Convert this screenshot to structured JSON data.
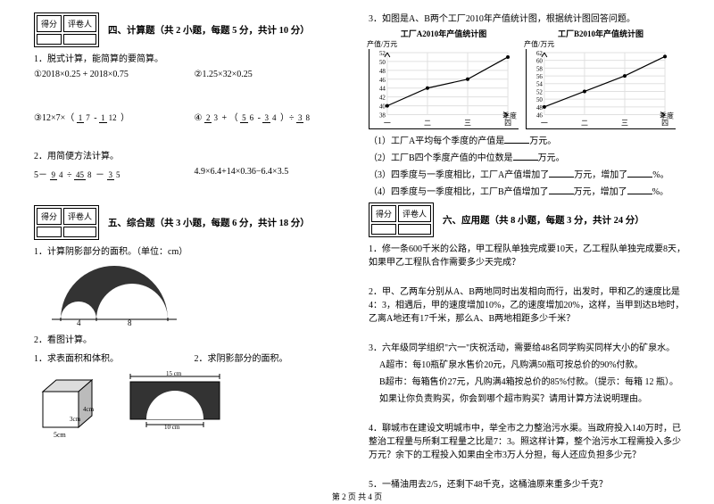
{
  "scorebox": {
    "c1": "得分",
    "c2": "评卷人"
  },
  "left": {
    "sec4_title": "四、计算题（共 2 小题，每题 5 分，共计 10 分）",
    "q1": "1．脱式计算，能简算的要简算。",
    "q1a": "①2018×0.25 + 2018×0.75",
    "q1b": "②1.25×32×0.25",
    "q1c_pre": "③12×7×（",
    "q1c_f1n": "1",
    "q1c_f1d": "7",
    "q1c_mid": " - ",
    "q1c_f2n": "1",
    "q1c_f2d": "12",
    "q1c_post": "）",
    "q1d_pre": "④",
    "q1d_f1n": "2",
    "q1d_f1d": "3",
    "q1d_p2": " + （",
    "q1d_f2n": "5",
    "q1d_f2d": "6",
    "q1d_p3": " - ",
    "q1d_f3n": "3",
    "q1d_f3d": "4",
    "q1d_p4": "）÷",
    "q1d_f4n": "3",
    "q1d_f4d": "8",
    "q2": "2．用简便方法计算。",
    "q2a_pre": "5－",
    "q2a_f1n": "9",
    "q2a_f1d": "4",
    "q2a_p2": "÷",
    "q2a_f2n": "45",
    "q2a_f2d": "8",
    "q2a_p3": "－",
    "q2a_f3n": "3",
    "q2a_f3d": "5",
    "q2b": "4.9×6.4+14×0.36−6.4×3.5",
    "sec5_title": "五、综合题（共 3 小题，每题 6 分，共计 18 分）",
    "q5_1": "1．计算阴影部分的面积。（单位：cm）",
    "dim4": "4",
    "dim8": "8",
    "q5_2": "2．看图计算。",
    "q5_2a": "1．求表面积和体积。",
    "q5_2b": "2．求阴影部分的面积。",
    "dim5cm": "5cm",
    "dim3cm": "3cm",
    "dim4cm_v": "4cm",
    "dim15cm": "15 cm",
    "dim10cm": "10 cm"
  },
  "right": {
    "q3": "3．如图是A、B两个工厂2010年产值统计图，根据统计图回答问题。",
    "chartA_title": "工厂A2010年产值统计图",
    "chartB_title": "工厂B2010年产值统计图",
    "ylabel": "产值/万元",
    "xlabel": "季度",
    "xticks": [
      "一",
      "二",
      "三",
      "四"
    ],
    "chartA_y": [
      38,
      40,
      42,
      44,
      46,
      48,
      50,
      52
    ],
    "chartB_y": [
      46,
      48,
      50,
      52,
      54,
      56,
      58,
      60,
      62
    ],
    "chartA_data": [
      40,
      44,
      46,
      51
    ],
    "chartB_data": [
      48,
      52,
      56,
      61
    ],
    "q3_1_a": "（1）工厂A平均每个季度的产值是",
    "q3_1_b": "万元。",
    "q3_2_a": "（2）工厂B四个季度产值的中位数是",
    "q3_2_b": "万元。",
    "q3_3_a": "（3）四季度与一季度相比，工厂A产值增加了",
    "q3_3_b": "万元，增加了",
    "q3_3_c": "%。",
    "q3_4_a": "（4）四季度与一季度相比，工厂B产值增加了",
    "q3_4_b": "万元，增加了",
    "q3_4_c": "%。",
    "sec6_title": "六、应用题（共 8 小题，每题 3 分，共计 24 分）",
    "q6_1": "1．修一条600千米的公路，甲工程队单独完成要10天，乙工程队单独完成要8天，如果甲乙工程队合作需要多少天完成？",
    "q6_2": "2．甲、乙两车分别从A、B两地同时出发相向而行，出发时，甲和乙的速度比是4：3，相遇后，甲的速度增加10%，乙的速度增加20%，这样，当甲到达B地时，乙离A地还有17千米，那么A、B两地相距多少千米？",
    "q6_3a": "3．六年级同学组织\"六一\"庆祝活动，需要给48名同学购买同样大小的矿泉水。",
    "q6_3b": "A超市：每10瓶矿泉水售价20元，凡购满50瓶可按总价的90%付款。",
    "q6_3c": "B超市：每箱售价27元，凡购满4箱按总价的85%付款。（提示：每箱 12 瓶）。",
    "q6_3d": "如果让你负责购买，你会到哪个超市购买？请用计算方法说明理由。",
    "q6_4": "4．聊城市在建设文明城市中，举全市之力整治污水渠。当政府投入140万时，已整治工程量与所剩工程量之比是7：3。照这样计算，整个治污水工程需投入多少万元？余下的工程投入如果由全市3万人分担，每人还应负担多少元？",
    "q6_5": "5．一桶油用去2/5，还剩下48千克，这桶油原来重多少千克？"
  },
  "footer": "第 2 页 共 4 页",
  "colors": {
    "grid": "#e0e0e0",
    "line": "#000"
  }
}
